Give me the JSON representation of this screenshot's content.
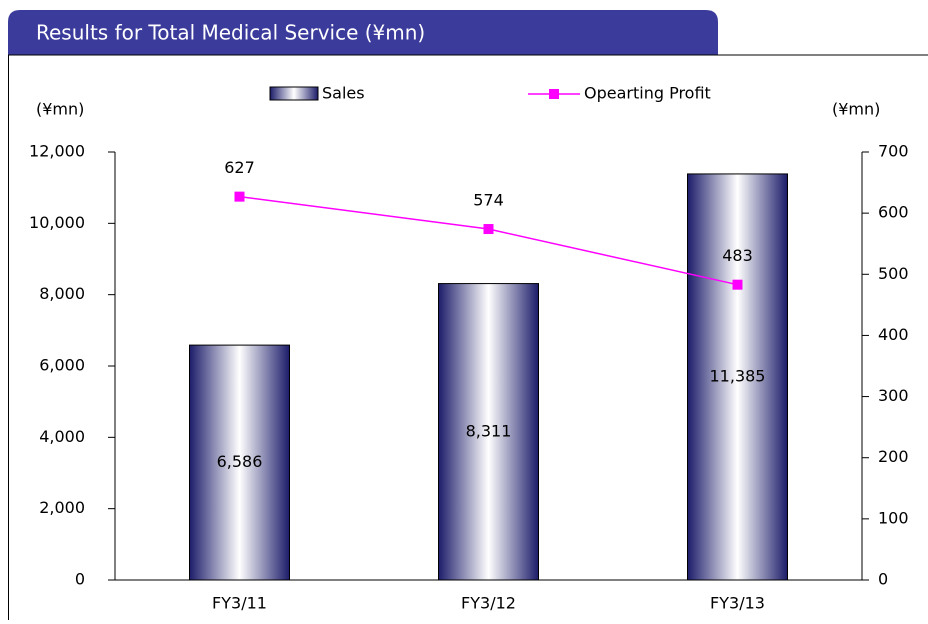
{
  "chart_data": {
    "type": "bar+line",
    "title": "Results for Total Medical Service (¥mn)",
    "y_label": "(¥mn)",
    "y2_label": "(¥mn)",
    "categories": [
      "FY3/11",
      "FY3/12",
      "FY3/13"
    ],
    "series": [
      {
        "name": "Sales",
        "type": "bar",
        "color": "#1c1c6a",
        "values": [
          6586,
          8311,
          11385
        ],
        "value_labels": [
          "6,586",
          "8,311",
          "11,385"
        ]
      },
      {
        "name": "Opearting Profit",
        "type": "line",
        "axis": "y2",
        "color": "#ff00ff",
        "values": [
          627,
          574,
          483
        ]
      }
    ],
    "ylim": [
      0,
      12000
    ],
    "yticks": [
      0,
      {
        "value": 2000,
        "label": "2,000"
      },
      {
        "value": 4000,
        "label": "4,000"
      },
      {
        "value": 6000,
        "label": "6,000"
      },
      {
        "value": 8000,
        "label": "8,000"
      },
      {
        "value": 10000,
        "label": "10,000"
      },
      {
        "value": 12000,
        "label": "12,000"
      }
    ],
    "y2lim": [
      0,
      700
    ],
    "y2ticks": [
      0,
      100,
      200,
      300,
      400,
      500,
      600,
      700
    ]
  }
}
